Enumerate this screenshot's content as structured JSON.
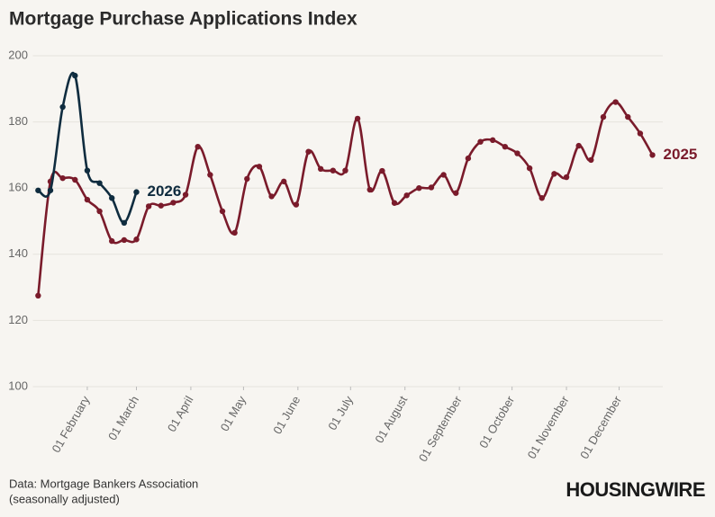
{
  "chart_data": {
    "type": "line",
    "title": "Mortgage Purchase Applications Index",
    "x": [
      4,
      11,
      18,
      25,
      32,
      39,
      46,
      53,
      60,
      67,
      74,
      81,
      88,
      95,
      102,
      109,
      116,
      123,
      130,
      137,
      144,
      151,
      158,
      165,
      172,
      179,
      186,
      193,
      200,
      207,
      214,
      221,
      228,
      235,
      242,
      249,
      256,
      263,
      270,
      277,
      284,
      291,
      298,
      305,
      312,
      319,
      326,
      333,
      340,
      347,
      354
    ],
    "series": [
      {
        "name": "2025",
        "color": "#7a1b2b",
        "values": [
          127.5,
          162,
          163,
          162.5,
          156.5,
          153,
          144,
          144.3,
          144.5,
          154.5,
          154.7,
          155.6,
          158,
          172.5,
          164,
          153,
          146.5,
          162.8,
          166.5,
          157.5,
          162,
          155,
          171,
          165.8,
          165.3,
          165.3,
          181,
          159.5,
          165.2,
          155.5,
          157.8,
          160,
          160.2,
          164,
          158.5,
          169,
          174,
          174.5,
          172.5,
          170.5,
          166,
          157,
          164.3,
          163.3,
          172.8,
          168.5,
          181.5,
          186,
          181.5,
          176.5,
          170
        ]
      },
      {
        "name": "2026",
        "color": "#0f2c3f",
        "values": [
          159.3,
          159.3,
          184.5,
          194,
          165.3,
          161.5,
          157,
          149.5,
          158.8,
          null,
          null,
          null,
          null,
          null,
          null,
          null,
          null,
          null,
          null,
          null,
          null,
          null,
          null,
          null,
          null,
          null,
          null,
          null,
          null,
          null,
          null,
          null,
          null,
          null,
          null,
          null,
          null,
          null,
          null,
          null,
          null,
          null,
          null,
          null,
          null,
          null,
          null,
          null,
          null,
          null,
          null
        ]
      }
    ],
    "xlim": [
      1,
      365
    ],
    "xticks": [
      {
        "value": 32,
        "label": "01 February"
      },
      {
        "value": 60,
        "label": "01 March"
      },
      {
        "value": 91,
        "label": "01 April"
      },
      {
        "value": 121,
        "label": "01 May"
      },
      {
        "value": 152,
        "label": "01 June"
      },
      {
        "value": 182,
        "label": "01 July"
      },
      {
        "value": 213,
        "label": "01 August"
      },
      {
        "value": 244,
        "label": "01 September"
      },
      {
        "value": 274,
        "label": "01 October"
      },
      {
        "value": 305,
        "label": "01 November"
      },
      {
        "value": 335,
        "label": "01 December"
      }
    ],
    "ylim": [
      100,
      200
    ],
    "yticks": [
      100,
      120,
      140,
      160,
      180,
      200
    ],
    "grid": true,
    "source": [
      "Data: Mortgage Bankers Association",
      "(seasonally adjusted)"
    ],
    "logo": "HOUSINGWIRE"
  }
}
